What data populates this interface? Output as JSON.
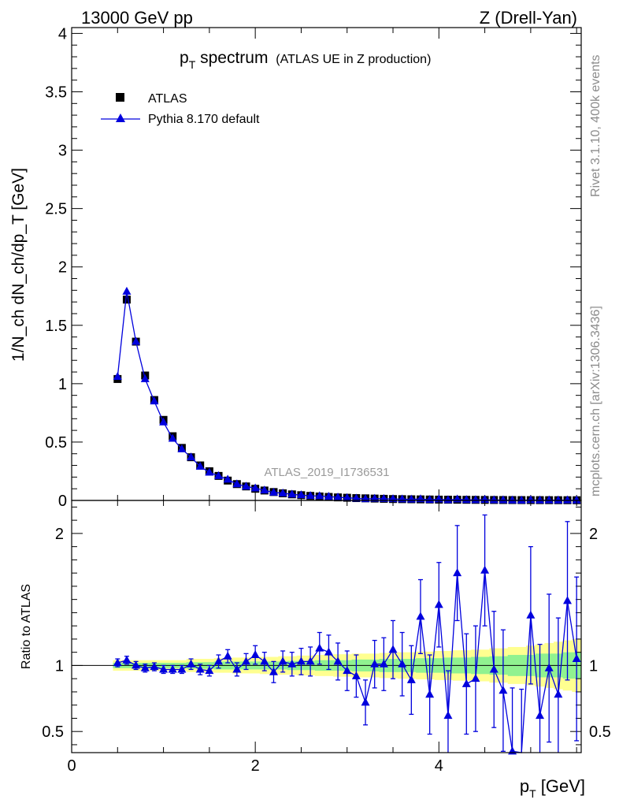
{
  "header": {
    "left": "13000 GeV pp",
    "right": "Z (Drell-Yan)"
  },
  "side_text": {
    "rivet": "Rivet 3.1.10,  400k events",
    "mcplots": "mcplots.cern.ch [arXiv:1306.3436]"
  },
  "analysis_id": "ATLAS_2019_I1736531",
  "colors": {
    "data": "#000000",
    "mc": "#0000dd",
    "band_inner": "#90f290",
    "band_outer": "#ffff90"
  },
  "chart_data": [
    {
      "type": "scatter",
      "panel": "main",
      "title": "p_T spectrum",
      "title_main": "p",
      "title_sub": "T",
      "title_rest": " spectrum",
      "subtitle": "(ATLAS UE in Z production)",
      "ylabel": "1/N_ch dN_ch/dp_T [GeV]",
      "xlim": [
        0,
        5.55
      ],
      "ylim": [
        0,
        4.05
      ],
      "x_ticks": [
        0,
        2,
        4
      ],
      "y_ticks": [
        "0",
        "0.5",
        "1",
        "1.5",
        "2",
        "2.5",
        "3",
        "3.5",
        "4"
      ],
      "legend_position": "top-left",
      "x": [
        0.5,
        0.6,
        0.7,
        0.8,
        0.9,
        1.0,
        1.1,
        1.2,
        1.3,
        1.4,
        1.5,
        1.6,
        1.7,
        1.8,
        1.9,
        2.0,
        2.1,
        2.2,
        2.3,
        2.4,
        2.5,
        2.6,
        2.7,
        2.8,
        2.9,
        3.0,
        3.1,
        3.2,
        3.3,
        3.4,
        3.5,
        3.6,
        3.7,
        3.8,
        3.9,
        4.0,
        4.1,
        4.2,
        4.3,
        4.4,
        4.5,
        4.6,
        4.7,
        4.8,
        4.9,
        5.0,
        5.1,
        5.2,
        5.3,
        5.4,
        5.5
      ],
      "series": [
        {
          "name": "ATLAS",
          "marker": "square",
          "values": [
            1.04,
            1.72,
            1.36,
            1.07,
            0.86,
            0.69,
            0.55,
            0.45,
            0.37,
            0.3,
            0.25,
            0.21,
            0.17,
            0.14,
            0.12,
            0.1,
            0.085,
            0.072,
            0.061,
            0.052,
            0.045,
            0.039,
            0.034,
            0.03,
            0.026,
            0.023,
            0.02,
            0.018,
            0.016,
            0.014,
            0.012,
            0.011,
            0.01,
            0.009,
            0.008,
            0.007,
            0.0065,
            0.006,
            0.0055,
            0.005,
            0.0045,
            0.004,
            0.0037,
            0.0034,
            0.003,
            0.0028,
            0.0026,
            0.0024,
            0.0022,
            0.002,
            0.0019
          ]
        },
        {
          "name": "Pythia 8.170 default",
          "marker": "triangle",
          "values": [
            1.06,
            1.79,
            1.36,
            1.04,
            0.85,
            0.67,
            0.53,
            0.44,
            0.37,
            0.29,
            0.24,
            0.21,
            0.18,
            0.14,
            0.12,
            0.105,
            0.087,
            0.068,
            0.062,
            0.052,
            0.046,
            0.04,
            0.038,
            0.033,
            0.027,
            0.022,
            0.018,
            0.013,
            0.016,
            0.014,
            0.013,
            0.011,
            0.009,
            0.012,
            0.006,
            0.01,
            0.004,
            0.01,
            0.005,
            0.0045,
            0.007,
            0.0034,
            0.003,
            0.002,
            0.001,
            0.0038,
            0.0016,
            0.0023,
            0.0017,
            0.0029,
            0.002
          ]
        }
      ]
    },
    {
      "type": "scatter",
      "panel": "ratio",
      "ylabel": "Ratio to ATLAS",
      "xlabel": "p_T [GeV]",
      "xlabel_main": "p",
      "xlabel_sub": "T",
      "xlabel_rest": " [GeV]",
      "xlim": [
        0,
        5.55
      ],
      "ylim": [
        0.34,
        2.25
      ],
      "y_ticks": [
        0.5,
        1,
        2
      ],
      "y_tick_labels": [
        "0.5",
        "1",
        "2"
      ],
      "x_ticks": [
        0,
        2,
        4
      ],
      "x_tick_labels": [
        "0",
        "2",
        "4"
      ],
      "series": [
        {
          "name": "Pythia 8.170 default",
          "values": [
            1.02,
            1.04,
            1.0,
            0.98,
            0.99,
            0.97,
            0.97,
            0.97,
            1.01,
            0.97,
            0.96,
            1.03,
            1.07,
            0.97,
            1.03,
            1.08,
            1.03,
            0.95,
            1.03,
            1.01,
            1.03,
            1.03,
            1.13,
            1.1,
            1.03,
            0.96,
            0.92,
            0.72,
            1.01,
            1.01,
            1.12,
            1.01,
            0.89,
            1.37,
            0.78,
            1.46,
            0.62,
            1.7,
            0.86,
            0.9,
            1.72,
            0.97,
            0.81,
            0.35,
            0.32,
            1.38,
            0.62,
            0.98,
            0.78,
            1.49,
            1.05
          ],
          "errors": [
            0.03,
            0.03,
            0.03,
            0.03,
            0.03,
            0.03,
            0.03,
            0.03,
            0.04,
            0.04,
            0.04,
            0.05,
            0.05,
            0.05,
            0.06,
            0.07,
            0.07,
            0.08,
            0.08,
            0.09,
            0.1,
            0.11,
            0.12,
            0.13,
            0.14,
            0.15,
            0.16,
            0.17,
            0.18,
            0.2,
            0.22,
            0.24,
            0.26,
            0.28,
            0.3,
            0.32,
            0.34,
            0.36,
            0.38,
            0.4,
            0.42,
            0.44,
            0.46,
            0.48,
            0.5,
            0.52,
            0.54,
            0.56,
            0.58,
            0.6,
            0.62
          ]
        }
      ],
      "band_inner_halfwidth": [
        0.02,
        0.02,
        0.02,
        0.02,
        0.02,
        0.02,
        0.02,
        0.02,
        0.025,
        0.025,
        0.025,
        0.03,
        0.03,
        0.03,
        0.03,
        0.03,
        0.03,
        0.03,
        0.03,
        0.035,
        0.035,
        0.035,
        0.04,
        0.04,
        0.04,
        0.04,
        0.045,
        0.045,
        0.045,
        0.05,
        0.05,
        0.05,
        0.05,
        0.055,
        0.055,
        0.055,
        0.06,
        0.06,
        0.06,
        0.065,
        0.065,
        0.07,
        0.07,
        0.08,
        0.08,
        0.08,
        0.09,
        0.09,
        0.09,
        0.1,
        0.1
      ],
      "band_outer_halfwidth": [
        0.04,
        0.04,
        0.04,
        0.04,
        0.04,
        0.04,
        0.04,
        0.04,
        0.05,
        0.05,
        0.05,
        0.055,
        0.055,
        0.06,
        0.06,
        0.06,
        0.065,
        0.065,
        0.07,
        0.07,
        0.075,
        0.075,
        0.08,
        0.08,
        0.085,
        0.085,
        0.09,
        0.09,
        0.09,
        0.095,
        0.095,
        0.1,
        0.1,
        0.105,
        0.105,
        0.11,
        0.11,
        0.115,
        0.115,
        0.12,
        0.12,
        0.13,
        0.13,
        0.14,
        0.14,
        0.15,
        0.16,
        0.17,
        0.18,
        0.19,
        0.2
      ]
    }
  ]
}
